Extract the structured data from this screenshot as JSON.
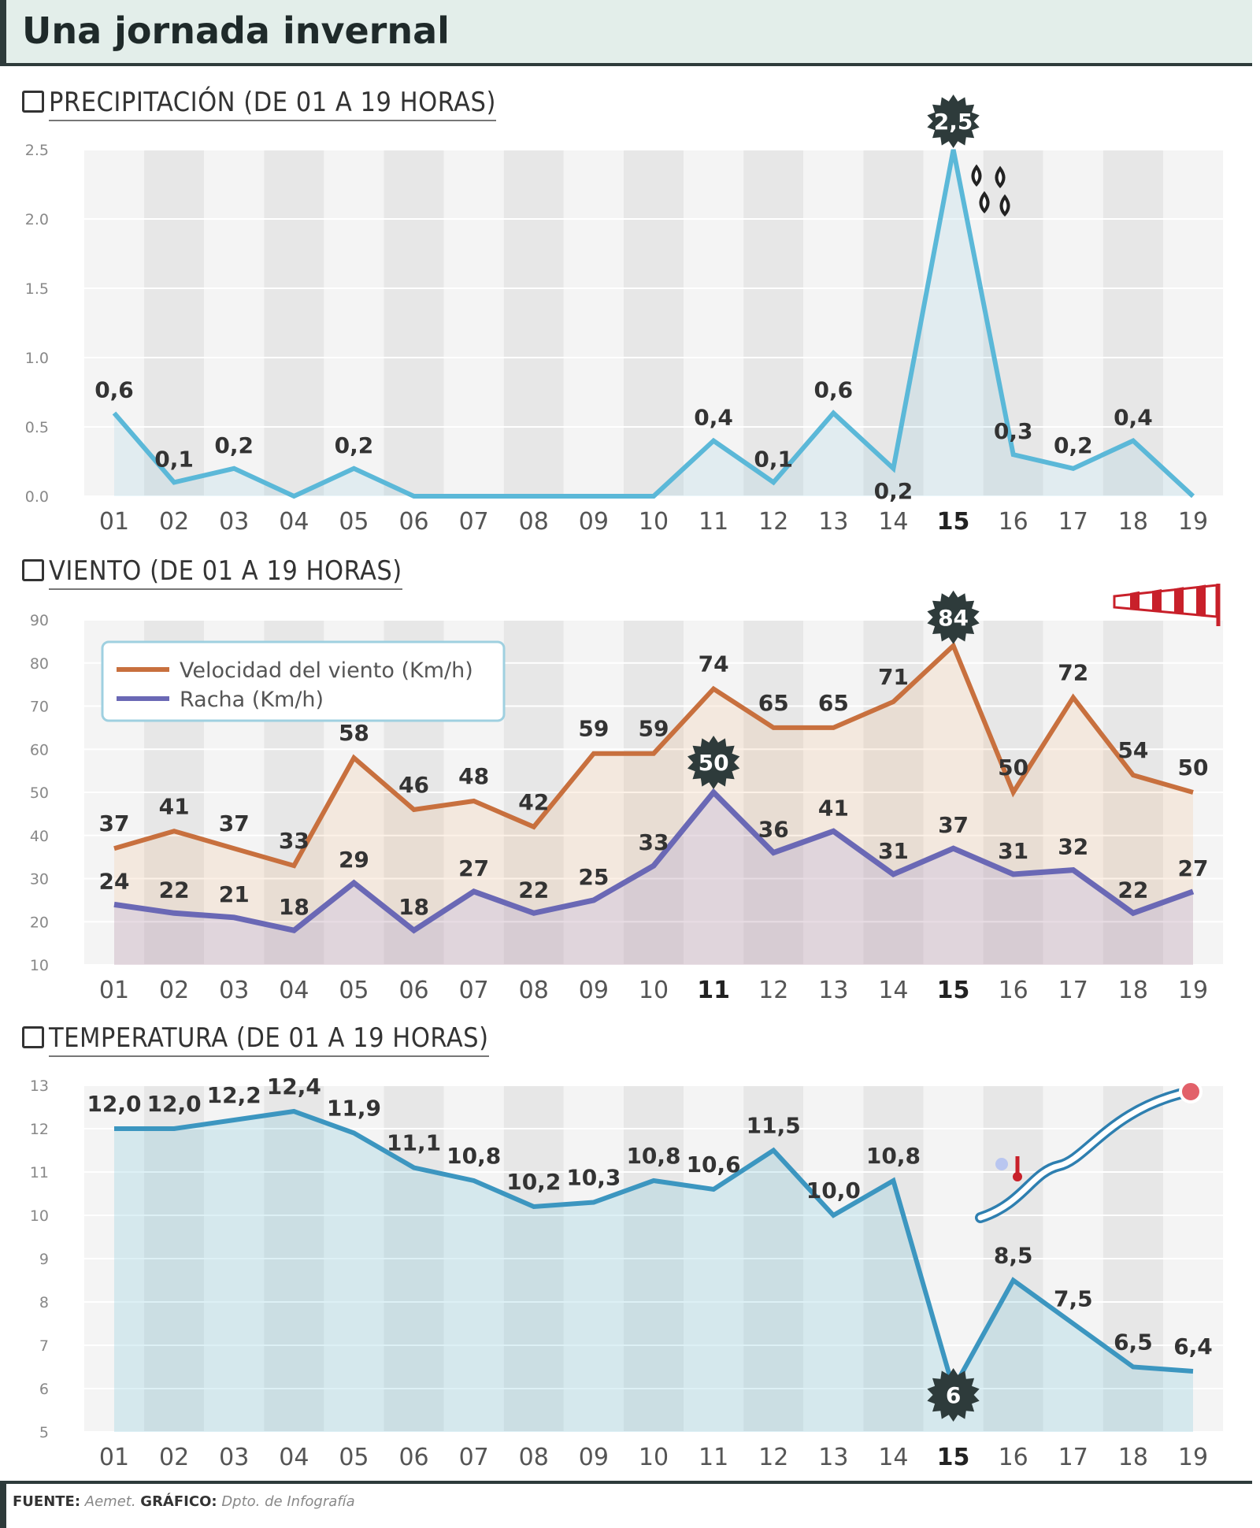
{
  "title": "Una jornada invernal",
  "x_labels": [
    "01",
    "02",
    "03",
    "04",
    "05",
    "06",
    "07",
    "08",
    "09",
    "10",
    "11",
    "12",
    "13",
    "14",
    "15",
    "16",
    "17",
    "18",
    "19"
  ],
  "colors": {
    "precip_line": "#5bb8d8",
    "wind_speed": "#c8703e",
    "gust": "#6a68b5",
    "temp_line": "#3c96c0",
    "badge": "#2e3b3b"
  },
  "sections": {
    "precip": "PRECIPITACIÓN (DE 01 A 19 HORAS)",
    "wind": "VIENTO (DE 01 A 19 HORAS)",
    "temp": "TEMPERATURA (DE 01 A 19 HORAS)"
  },
  "chart_data": [
    {
      "type": "line",
      "title": "PRECIPITACIÓN (DE 01 A 19 HORAS)",
      "ylim": [
        0,
        2.5
      ],
      "yticks": [
        "0.0",
        "0.5",
        "1.0",
        "1.5",
        "2.0",
        "2.5"
      ],
      "values": [
        0.6,
        0.1,
        0.2,
        0.0,
        0.2,
        0.0,
        0.0,
        0.0,
        0.0,
        0.0,
        0.4,
        0.1,
        0.6,
        0.2,
        2.5,
        0.3,
        0.2,
        0.4,
        0.0
      ],
      "point_labels": [
        "0,6",
        "0,1",
        "0,2",
        "",
        "0,2",
        "",
        "",
        "",
        "",
        "",
        "0,4",
        "0,1",
        "0,6",
        "0,2",
        "2,5",
        "0,3",
        "0,2",
        "0,4",
        ""
      ],
      "highlight_index": 14,
      "icon": "raindrops-icon"
    },
    {
      "type": "area",
      "title": "VIENTO (DE 01 A 19 HORAS)",
      "ylim": [
        10,
        90
      ],
      "yticks": [
        "10",
        "20",
        "30",
        "40",
        "50",
        "60",
        "70",
        "80",
        "90"
      ],
      "legend_placement": "top-left",
      "series": [
        {
          "name": "Velocidad del viento (Km/h)",
          "values": [
            37,
            41,
            37,
            33,
            58,
            46,
            48,
            42,
            59,
            59,
            74,
            65,
            65,
            71,
            84,
            50,
            72,
            54,
            50
          ],
          "point_labels": [
            "37",
            "41",
            "37",
            "33",
            "58",
            "46",
            "48",
            "42",
            "59",
            "59",
            "74",
            "65",
            "65",
            "71",
            "84",
            "50",
            "72",
            "54",
            "50"
          ],
          "highlight_index": 14
        },
        {
          "name": "Racha (Km/h)",
          "values": [
            24,
            22,
            21,
            18,
            29,
            18,
            27,
            22,
            25,
            33,
            50,
            36,
            41,
            31,
            37,
            31,
            32,
            22,
            27
          ],
          "point_labels": [
            "24",
            "22",
            "21",
            "18",
            "29",
            "18",
            "27",
            "22",
            "25",
            "33",
            "50",
            "36",
            "41",
            "31",
            "37",
            "31",
            "32",
            "22",
            "27"
          ],
          "highlight_index": 10
        }
      ],
      "icon": "windsock-icon"
    },
    {
      "type": "area",
      "title": "TEMPERATURA (DE 01 A 19 HORAS)",
      "ylim": [
        5,
        13
      ],
      "yticks": [
        "5",
        "6",
        "7",
        "8",
        "9",
        "10",
        "11",
        "12",
        "13"
      ],
      "values": [
        12.0,
        12.0,
        12.2,
        12.4,
        11.9,
        11.1,
        10.8,
        10.2,
        10.3,
        10.8,
        10.6,
        11.5,
        10.0,
        10.8,
        6.0,
        8.5,
        7.5,
        6.5,
        6.4
      ],
      "point_labels": [
        "12,0",
        "12,0",
        "12,2",
        "12,4",
        "11,9",
        "11,1",
        "10,8",
        "10,2",
        "10,3",
        "10,8",
        "10,6",
        "11,5",
        "10,0",
        "10,8",
        "6",
        "8,5",
        "7,5",
        "6,5",
        "6,4"
      ],
      "highlight_index": 14,
      "icon": "thermometer-icon"
    }
  ],
  "footer": {
    "source_label": "FUENTE:",
    "source_value": "Aemet.",
    "graphic_label": "GRÁFICO:",
    "graphic_value": "Dpto. de Infografía"
  }
}
